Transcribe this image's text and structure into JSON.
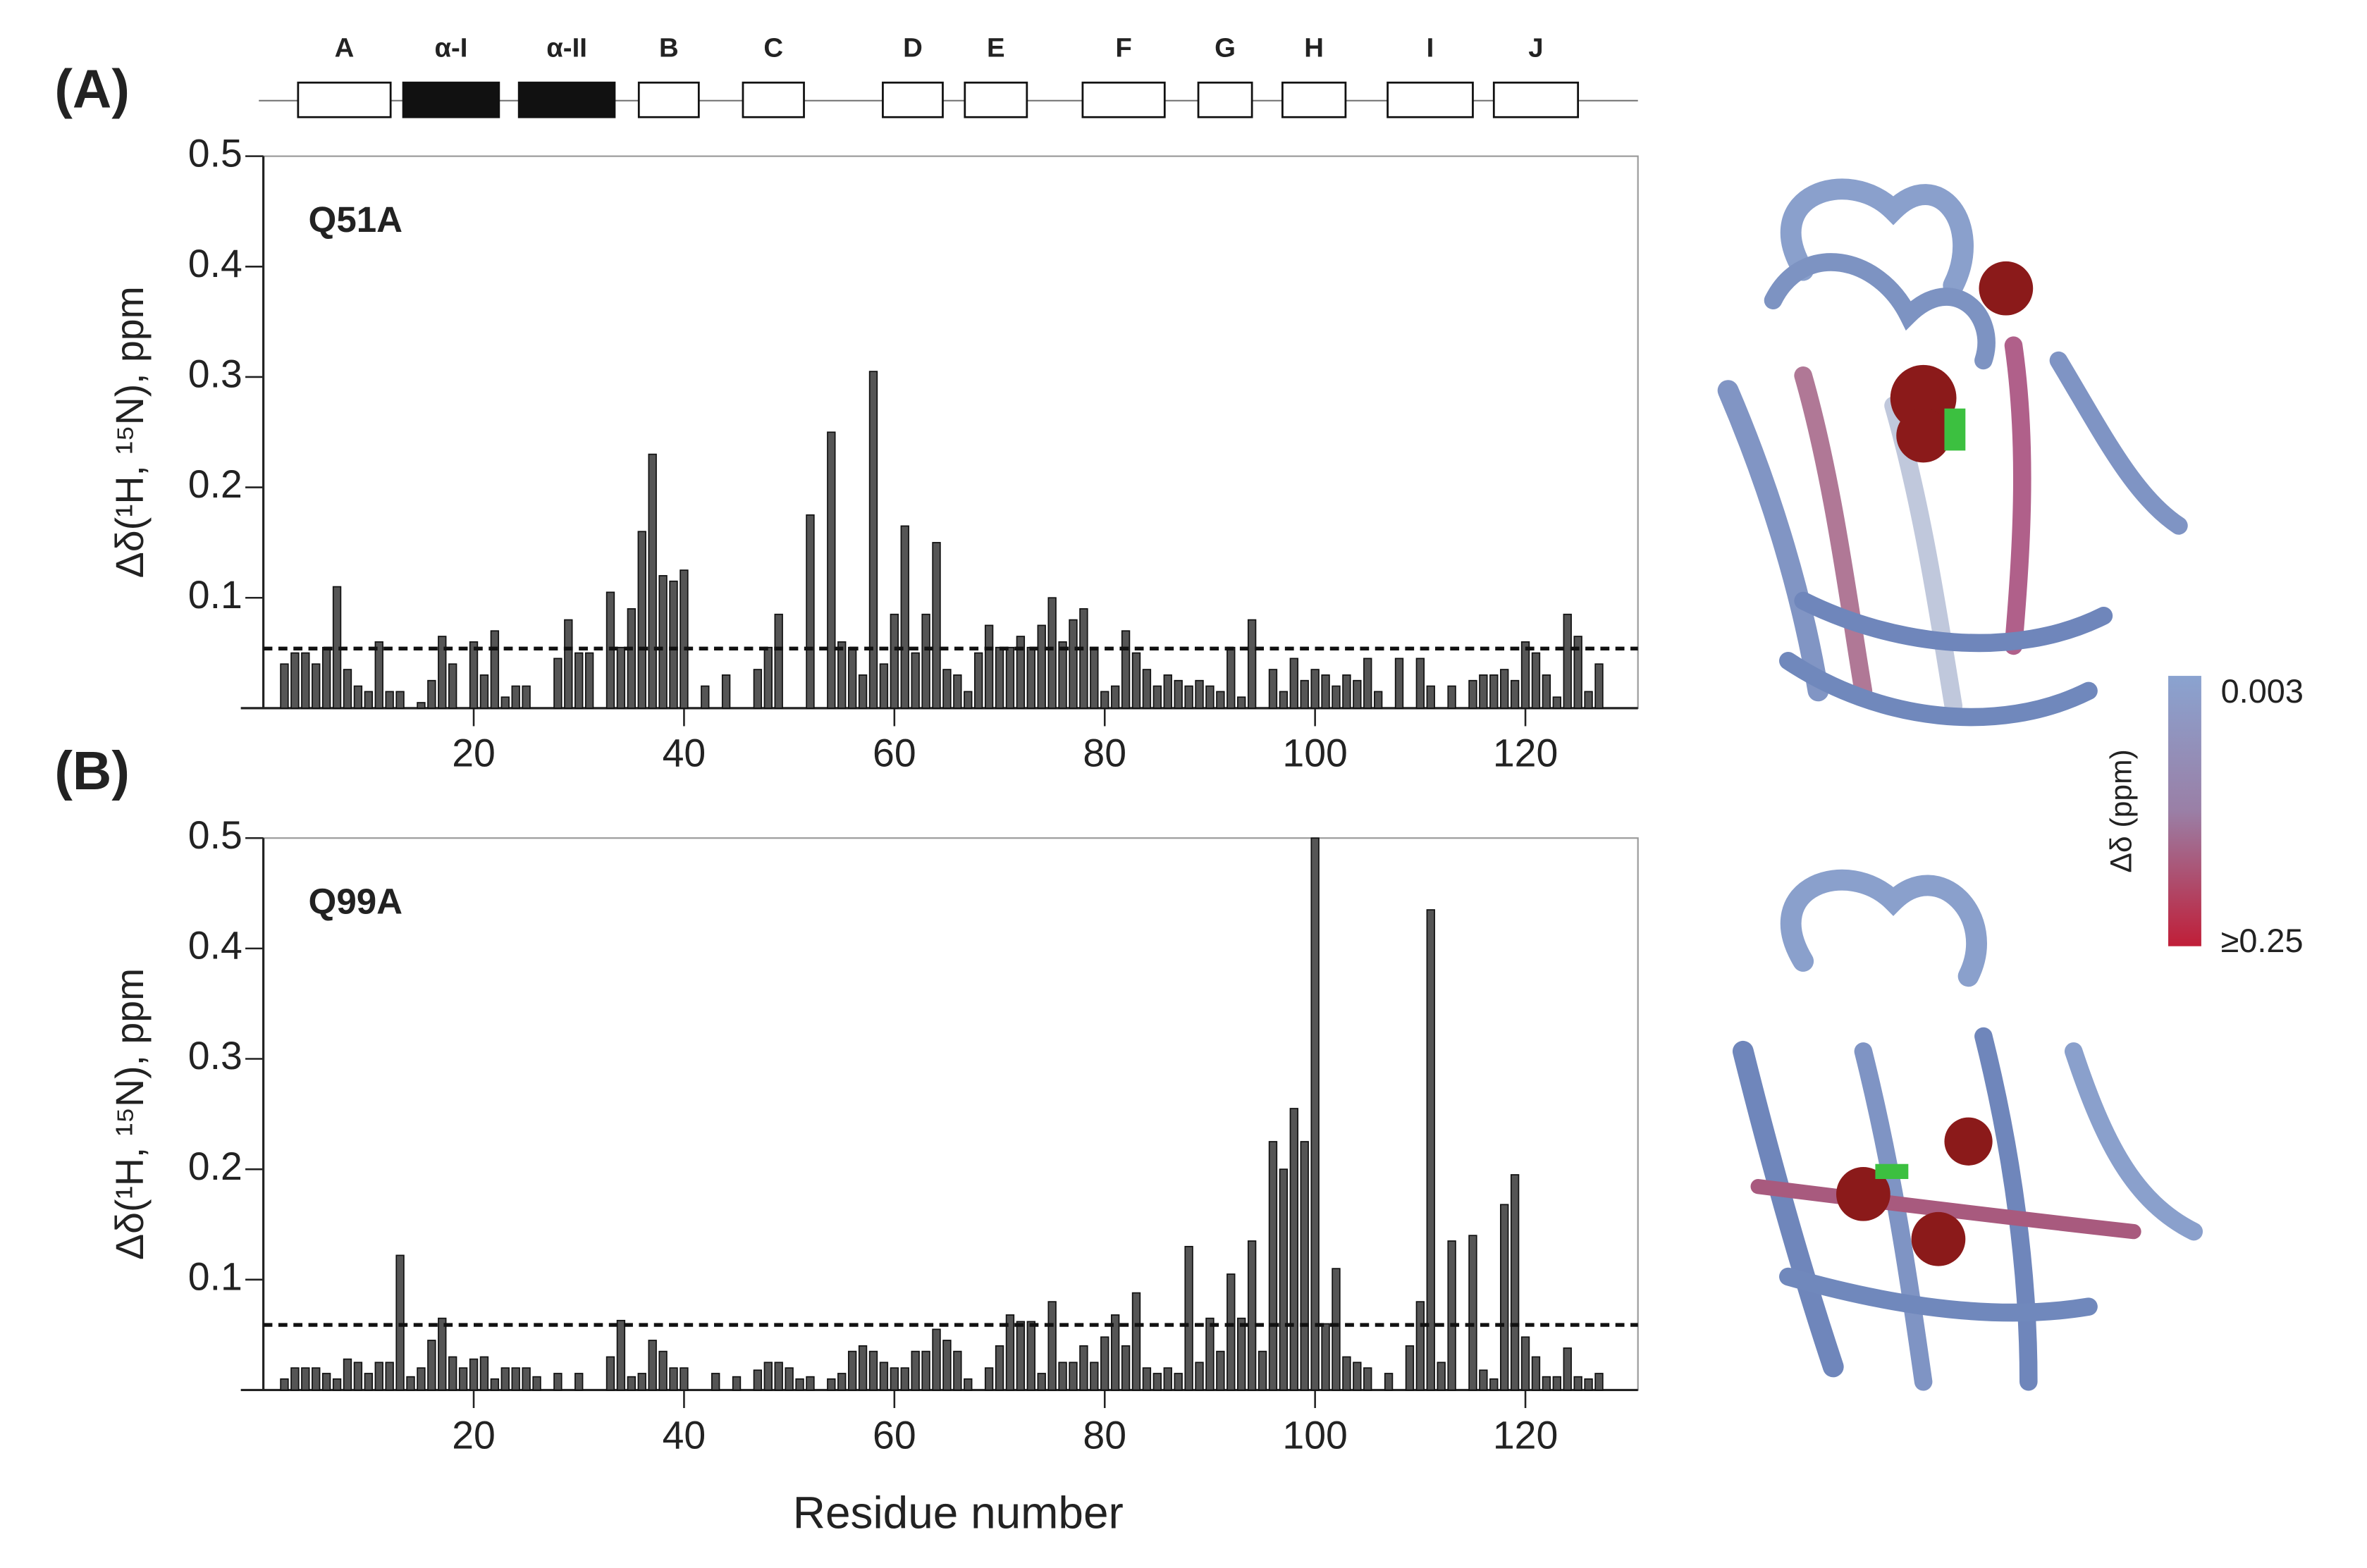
{
  "chart_data": [
    {
      "type": "bar",
      "panel": "(A)",
      "label": "Q51A",
      "ylabel": "Δδ(¹H, ¹⁵N), ppm",
      "color": "#555555",
      "threshold": 0.054,
      "xlim": [
        0,
        130.7
      ],
      "xticks": [
        20,
        40,
        60,
        80,
        100,
        120
      ],
      "ylim": [
        0,
        0.5
      ],
      "yticks": [
        0.1,
        0.2,
        0.3,
        0.4,
        0.5
      ],
      "x": [
        2,
        3,
        4,
        5,
        6,
        7,
        8,
        9,
        10,
        11,
        12,
        13,
        15,
        16,
        17,
        18,
        20,
        21,
        22,
        23,
        24,
        25,
        28,
        29,
        30,
        31,
        33,
        34,
        35,
        36,
        37,
        38,
        39,
        40,
        42,
        44,
        47,
        48,
        49,
        52,
        54,
        55,
        56,
        57,
        58,
        59,
        60,
        61,
        62,
        63,
        64,
        65,
        66,
        67,
        68,
        69,
        70,
        71,
        72,
        73,
        74,
        75,
        76,
        77,
        78,
        79,
        80,
        81,
        82,
        83,
        84,
        85,
        86,
        87,
        88,
        89,
        90,
        91,
        92,
        93,
        94,
        96,
        97,
        98,
        99,
        100,
        101,
        102,
        103,
        104,
        105,
        106,
        108,
        110,
        111,
        113,
        115,
        116,
        117,
        118,
        119,
        120,
        121,
        122,
        123,
        124,
        125,
        126,
        127
      ],
      "values": [
        0.04,
        0.05,
        0.05,
        0.04,
        0.055,
        0.11,
        0.035,
        0.02,
        0.015,
        0.06,
        0.015,
        0.015,
        0.005,
        0.025,
        0.065,
        0.04,
        0.06,
        0.03,
        0.07,
        0.01,
        0.02,
        0.02,
        0.045,
        0.08,
        0.05,
        0.05,
        0.105,
        0.055,
        0.09,
        0.16,
        0.23,
        0.12,
        0.115,
        0.125,
        0.02,
        0.03,
        0.035,
        0.055,
        0.085,
        0.175,
        0.25,
        0.06,
        0.055,
        0.03,
        0.305,
        0.04,
        0.085,
        0.165,
        0.05,
        0.085,
        0.15,
        0.035,
        0.03,
        0.015,
        0.05,
        0.075,
        0.055,
        0.055,
        0.065,
        0.055,
        0.075,
        0.1,
        0.06,
        0.08,
        0.09,
        0.055,
        0.015,
        0.02,
        0.07,
        0.05,
        0.035,
        0.02,
        0.03,
        0.025,
        0.02,
        0.025,
        0.02,
        0.015,
        0.055,
        0.01,
        0.08,
        0.035,
        0.015,
        0.045,
        0.025,
        0.035,
        0.03,
        0.02,
        0.03,
        0.025,
        0.045,
        0.015,
        0.045,
        0.045,
        0.02,
        0.02,
        0.025,
        0.03,
        0.03,
        0.035,
        0.025,
        0.06,
        0.05,
        0.03,
        0.01,
        0.085,
        0.065,
        0.015,
        0.04
      ]
    },
    {
      "type": "bar",
      "panel": "(B)",
      "label": "Q99A",
      "ylabel": "Δδ(¹H, ¹⁵N), ppm",
      "xlabel": "Residue number",
      "color": "#555555",
      "threshold": 0.059,
      "xlim": [
        0,
        130.7
      ],
      "xticks": [
        20,
        40,
        60,
        80,
        100,
        120
      ],
      "ylim": [
        0,
        0.5
      ],
      "yticks": [
        0.1,
        0.2,
        0.3,
        0.4,
        0.5
      ],
      "x": [
        2,
        3,
        4,
        5,
        6,
        7,
        8,
        9,
        10,
        11,
        12,
        13,
        14,
        15,
        16,
        17,
        18,
        19,
        20,
        21,
        22,
        23,
        24,
        25,
        26,
        28,
        30,
        33,
        34,
        35,
        36,
        37,
        38,
        39,
        40,
        43,
        45,
        47,
        48,
        49,
        50,
        51,
        52,
        54,
        55,
        56,
        57,
        58,
        59,
        60,
        61,
        62,
        63,
        64,
        65,
        66,
        67,
        69,
        70,
        71,
        72,
        73,
        74,
        75,
        76,
        77,
        78,
        79,
        80,
        81,
        82,
        83,
        84,
        85,
        86,
        87,
        88,
        89,
        90,
        91,
        92,
        93,
        94,
        95,
        96,
        97,
        98,
        99,
        100,
        101,
        102,
        103,
        104,
        105,
        107,
        109,
        110,
        111,
        112,
        113,
        115,
        116,
        117,
        118,
        119,
        120,
        121,
        122,
        123,
        124,
        125,
        126,
        127
      ],
      "values": [
        0.01,
        0.02,
        0.02,
        0.02,
        0.015,
        0.01,
        0.028,
        0.025,
        0.015,
        0.025,
        0.025,
        0.122,
        0.012,
        0.02,
        0.045,
        0.065,
        0.03,
        0.02,
        0.028,
        0.03,
        0.01,
        0.02,
        0.02,
        0.02,
        0.012,
        0.015,
        0.015,
        0.03,
        0.063,
        0.012,
        0.015,
        0.045,
        0.035,
        0.02,
        0.02,
        0.015,
        0.012,
        0.018,
        0.025,
        0.025,
        0.02,
        0.01,
        0.012,
        0.01,
        0.015,
        0.035,
        0.04,
        0.035,
        0.025,
        0.02,
        0.02,
        0.035,
        0.035,
        0.055,
        0.045,
        0.035,
        0.01,
        0.02,
        0.04,
        0.068,
        0.062,
        0.062,
        0.015,
        0.08,
        0.025,
        0.025,
        0.04,
        0.025,
        0.048,
        0.068,
        0.04,
        0.088,
        0.02,
        0.015,
        0.02,
        0.015,
        0.13,
        0.025,
        0.065,
        0.035,
        0.105,
        0.065,
        0.135,
        0.035,
        0.225,
        0.2,
        0.255,
        0.225,
        0.5,
        0.06,
        0.11,
        0.03,
        0.025,
        0.02,
        0.015,
        0.04,
        0.08,
        0.435,
        0.025,
        0.135,
        0.14,
        0.018,
        0.01,
        0.168,
        0.195,
        0.048,
        0.03,
        0.012,
        0.012,
        0.038,
        0.012,
        0.01,
        0.015
      ]
    }
  ],
  "secondary_structure": [
    {
      "label": "A",
      "start": 3.3,
      "end": 12.1,
      "filled": false
    },
    {
      "label": "α-I",
      "start": 13.3,
      "end": 22.4,
      "filled": true
    },
    {
      "label": "α-II",
      "start": 24.3,
      "end": 33.4,
      "filled": true
    },
    {
      "label": "B",
      "start": 35.7,
      "end": 41.4,
      "filled": false
    },
    {
      "label": "C",
      "start": 45.6,
      "end": 51.4,
      "filled": false
    },
    {
      "label": "D",
      "start": 58.9,
      "end": 64.6,
      "filled": false
    },
    {
      "label": "E",
      "start": 66.7,
      "end": 72.6,
      "filled": false
    },
    {
      "label": "F",
      "start": 77.9,
      "end": 85.7,
      "filled": false
    },
    {
      "label": "G",
      "start": 88.9,
      "end": 94,
      "filled": false
    },
    {
      "label": "H",
      "start": 96.9,
      "end": 102.9,
      "filled": false
    },
    {
      "label": "I",
      "start": 106.9,
      "end": 115,
      "filled": false
    },
    {
      "label": "J",
      "start": 117,
      "end": 125,
      "filled": false
    }
  ],
  "colorbar": {
    "title": "Δδ (ppm)",
    "top_label": "0.003",
    "bottom_label": "≥0.25",
    "top_color": "#8aa3d0",
    "bottom_color": "#c01e38"
  }
}
